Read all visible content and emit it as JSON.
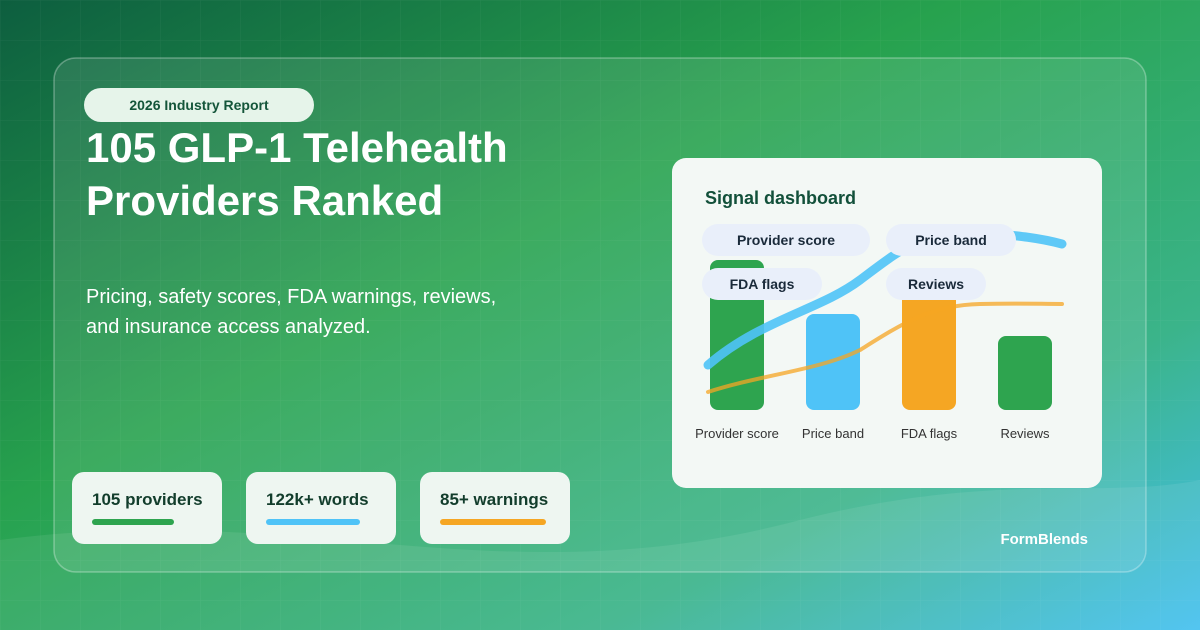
{
  "badge": "2026 Industry Report",
  "title": [
    "105 GLP-1 Telehealth",
    "Providers Ranked"
  ],
  "subtitle": [
    "Pricing, safety scores, FDA warnings, reviews,",
    "and insurance access analyzed."
  ],
  "stats": [
    "105 providers",
    "122k+ words",
    "85+ warnings"
  ],
  "dashboard": {
    "title": "Signal dashboard",
    "pills": [
      "Provider score",
      "Price band",
      "FDA flags",
      "Reviews"
    ],
    "bar_labels": [
      "Provider score",
      "Price band",
      "FDA flags",
      "Reviews"
    ]
  },
  "brand": "FormBlends"
}
